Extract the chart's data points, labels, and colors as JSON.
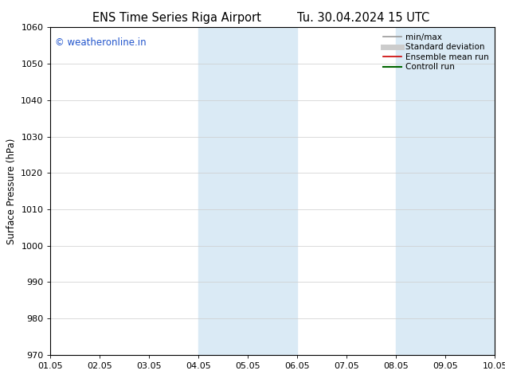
{
  "title_left": "ENS Time Series Riga Airport",
  "title_right": "Tu. 30.04.2024 15 UTC",
  "ylabel": "Surface Pressure (hPa)",
  "watermark": "© weatheronline.in",
  "xlim": [
    0,
    9
  ],
  "ylim": [
    970,
    1060
  ],
  "yticks": [
    970,
    980,
    990,
    1000,
    1010,
    1020,
    1030,
    1040,
    1050,
    1060
  ],
  "xtick_labels": [
    "01.05",
    "02.05",
    "03.05",
    "04.05",
    "05.05",
    "06.05",
    "07.05",
    "08.05",
    "09.05",
    "10.05"
  ],
  "shaded_regions": [
    {
      "xmin": 3.0,
      "xmax": 4.0
    },
    {
      "xmin": 4.0,
      "xmax": 5.0
    },
    {
      "xmin": 7.0,
      "xmax": 8.0
    },
    {
      "xmin": 8.0,
      "xmax": 9.0
    }
  ],
  "shaded_color": "#daeaf5",
  "legend_items": [
    {
      "label": "min/max",
      "color": "#999999",
      "lw": 1.2
    },
    {
      "label": "Standard deviation",
      "color": "#cccccc",
      "lw": 5
    },
    {
      "label": "Ensemble mean run",
      "color": "#cc0000",
      "lw": 1.2
    },
    {
      "label": "Controll run",
      "color": "#006600",
      "lw": 1.5
    }
  ],
  "background_color": "#ffffff",
  "grid_color": "#cccccc",
  "title_fontsize": 10.5,
  "watermark_color": "#2255cc",
  "watermark_fontsize": 8.5,
  "axis_fontsize": 8.5,
  "tick_fontsize": 8.0
}
